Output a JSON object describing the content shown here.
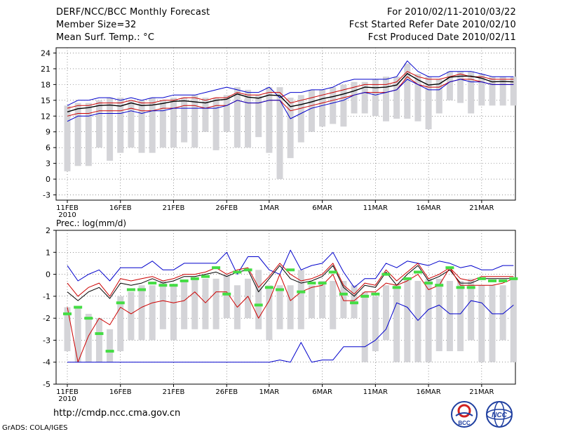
{
  "header": {
    "title": "DERF/NCC/BCC Monthly Forecast",
    "member_size": "Member Size=32",
    "variable": "Mean Surf. Temp.: °C",
    "period": "For 2010/02/11-2010/03/22",
    "fcst_started": "Fcst Started Refer Date 2010/02/10",
    "fcst_produced": "Fcst Produced Date 2010/02/11"
  },
  "footer": {
    "url": "http://cmdp.ncc.cma.gov.cn",
    "grads": "GrADS: COLA/IGES",
    "logo1_text": "BCC",
    "logo2_text": "NCC"
  },
  "colors": {
    "box": "#d4d4d8",
    "ensemble_max": "#0000cc",
    "ensemble_min": "#0000cc",
    "spread": "#cc0000",
    "mean": "#000000",
    "observed": "#44dd44",
    "grid": "#555555"
  },
  "chart_data": [
    {
      "type": "box-line",
      "title": "Mean Surf. Temp.: °C",
      "ylabel": "°C",
      "ylim": [
        -4,
        25
      ],
      "yticks": [
        -3,
        0,
        3,
        6,
        9,
        12,
        15,
        18,
        21,
        24
      ],
      "grid": true,
      "xlabel_ticks": [
        "11FEB",
        "16FEB",
        "21FEB",
        "26FEB",
        "1MAR",
        "6MAR",
        "11MAR",
        "16MAR",
        "21MAR"
      ],
      "x_year_label": "2010",
      "x_tick_day_index": [
        0,
        5,
        10,
        15,
        19,
        24,
        29,
        34,
        39
      ],
      "box_top": [
        14.0,
        14.5,
        14.5,
        15.0,
        15.5,
        15.5,
        15.0,
        15.0,
        15.5,
        15.0,
        15.5,
        15.5,
        16.0,
        15.5,
        15.5,
        16.0,
        17.5,
        17.0,
        16.0,
        17.5,
        17.5,
        15.5,
        16.0,
        17.0,
        17.0,
        17.5,
        18.0,
        18.5,
        18.5,
        19.0,
        19.5,
        19.5,
        22.0,
        20.0,
        19.5,
        19.0,
        20.5,
        20.5,
        20.5,
        20.0,
        19.5,
        19.5,
        19.5
      ],
      "box_bottom": [
        1.5,
        2.5,
        2.5,
        6.0,
        3.5,
        5.0,
        6.0,
        5.0,
        5.0,
        6.0,
        6.0,
        7.0,
        6.0,
        9.0,
        5.5,
        9.0,
        6.0,
        6.0,
        8.0,
        5.0,
        0.0,
        4.0,
        7.0,
        9.0,
        10.0,
        10.5,
        10.0,
        12.5,
        12.5,
        12.0,
        11.0,
        11.5,
        11.5,
        11.0,
        9.5,
        12.5,
        15.0,
        14.5,
        12.5,
        14.0,
        14.0,
        14.0,
        14.0
      ],
      "series": [
        {
          "name": "ensemble max",
          "values": [
            14.0,
            15.0,
            15.0,
            15.5,
            15.5,
            15.0,
            15.5,
            15.0,
            15.5,
            15.5,
            16.0,
            16.0,
            16.0,
            16.5,
            17.0,
            17.5,
            17.0,
            16.5,
            16.5,
            17.5,
            15.5,
            16.5,
            16.5,
            17.0,
            17.0,
            17.5,
            18.5,
            19.0,
            19.0,
            19.0,
            19.0,
            19.5,
            22.5,
            20.5,
            19.5,
            19.5,
            20.5,
            20.5,
            20.5,
            20.0,
            19.5,
            19.5,
            19.5
          ]
        },
        {
          "name": "spread upper",
          "values": [
            13.5,
            14.0,
            14.0,
            14.5,
            14.5,
            14.5,
            15.0,
            14.5,
            14.5,
            15.0,
            15.0,
            15.5,
            15.5,
            15.0,
            15.5,
            15.5,
            16.5,
            16.0,
            16.0,
            16.5,
            16.5,
            14.5,
            15.0,
            15.5,
            16.0,
            16.5,
            17.0,
            17.5,
            18.0,
            18.0,
            18.0,
            18.5,
            20.5,
            19.5,
            19.0,
            19.0,
            19.5,
            20.0,
            19.5,
            19.5,
            19.0,
            19.0,
            19.0
          ]
        },
        {
          "name": "ensemble mean",
          "values": [
            12.8,
            13.4,
            13.6,
            14.0,
            14.1,
            13.9,
            14.5,
            14.0,
            14.1,
            14.4,
            14.8,
            14.9,
            14.7,
            14.5,
            15.0,
            15.2,
            16.2,
            15.6,
            15.4,
            16.0,
            15.9,
            13.8,
            14.2,
            14.7,
            15.3,
            15.7,
            16.2,
            16.8,
            17.5,
            17.4,
            17.5,
            17.9,
            20.1,
            18.9,
            17.9,
            18.1,
            19.4,
            19.6,
            19.6,
            19.2,
            18.5,
            18.6,
            18.5
          ]
        },
        {
          "name": "spread lower",
          "values": [
            12.0,
            12.5,
            12.5,
            13.0,
            13.0,
            13.0,
            13.5,
            13.0,
            13.0,
            13.5,
            13.5,
            14.0,
            14.0,
            13.5,
            14.0,
            14.0,
            15.0,
            14.5,
            14.5,
            15.0,
            15.0,
            13.0,
            13.5,
            14.0,
            14.5,
            15.0,
            15.5,
            16.0,
            16.5,
            16.5,
            16.5,
            17.0,
            19.5,
            18.0,
            17.5,
            17.5,
            18.5,
            19.0,
            19.0,
            18.5,
            18.0,
            18.0,
            18.0
          ]
        },
        {
          "name": "ensemble min",
          "values": [
            11.0,
            12.0,
            12.0,
            12.5,
            12.5,
            12.5,
            13.0,
            12.5,
            13.0,
            13.0,
            13.5,
            13.5,
            13.5,
            13.5,
            13.5,
            14.0,
            15.0,
            14.5,
            14.5,
            15.0,
            15.0,
            11.5,
            12.5,
            13.5,
            14.0,
            14.5,
            15.0,
            16.0,
            16.5,
            16.0,
            16.5,
            17.0,
            19.0,
            18.0,
            17.0,
            17.0,
            18.5,
            19.0,
            18.5,
            18.5,
            18.0,
            18.0,
            18.0
          ]
        }
      ]
    },
    {
      "type": "box-line",
      "title": "Prec.: log(mm/d)",
      "ylabel": "log(mm/d)",
      "ylim": [
        -5,
        2
      ],
      "yticks": [
        -5,
        -4,
        -3,
        -2,
        -1,
        0,
        1,
        2
      ],
      "grid": true,
      "xlabel_ticks": [
        "11FEB",
        "16FEB",
        "21FEB",
        "26FEB",
        "1MAR",
        "6MAR",
        "11MAR",
        "16MAR",
        "21MAR"
      ],
      "x_year_label": "2010",
      "x_tick_day_index": [
        0,
        5,
        10,
        15,
        19,
        24,
        29,
        34,
        39
      ],
      "box_top": [
        -1.5,
        -1.5,
        -1.8,
        -2.0,
        -2.5,
        -1.0,
        -0.8,
        -0.5,
        -0.5,
        -0.3,
        -0.5,
        -0.3,
        -0.2,
        -0.2,
        -0.2,
        0.0,
        -0.5,
        -0.2,
        0.2,
        -0.5,
        -0.5,
        -0.5,
        0.2,
        -0.5,
        -0.3,
        -0.3,
        -0.3,
        -0.5,
        -0.8,
        -1.0,
        -0.5,
        -0.5,
        -0.2,
        -0.3,
        -0.2,
        -0.2,
        -0.3,
        -0.3,
        -0.2,
        -0.5,
        -0.5,
        -0.5,
        -0.2
      ],
      "box_bottom": [
        -3.5,
        -4.0,
        -4.0,
        -4.0,
        -4.0,
        -3.5,
        -3.0,
        -3.0,
        -3.0,
        -2.5,
        -3.0,
        -2.5,
        -2.5,
        -2.5,
        -2.5,
        -2.0,
        -2.5,
        -2.0,
        -2.5,
        -3.0,
        -2.5,
        -2.5,
        -2.5,
        -2.0,
        -2.0,
        -2.5,
        -2.0,
        -2.0,
        -4.0,
        -3.5,
        -3.0,
        -4.0,
        -4.0,
        -4.0,
        -4.0,
        -3.5,
        -3.5,
        -3.5,
        -3.0,
        -4.0,
        -4.0,
        -3.0,
        -4.0
      ],
      "observed": [
        -1.8,
        -1.5,
        -2.0,
        -2.7,
        -3.5,
        -1.3,
        -0.7,
        -0.7,
        -0.4,
        -0.5,
        -0.5,
        -0.3,
        -0.2,
        -0.1,
        0.3,
        -0.9,
        0.1,
        0.2,
        -1.4,
        -0.6,
        -0.7,
        0.2,
        -0.8,
        -0.4,
        -0.4,
        0.1,
        -0.9,
        -1.3,
        -1.0,
        -0.9,
        0.0,
        -0.6,
        -0.2,
        0.1,
        -0.4,
        -0.5,
        0.3,
        -0.6,
        -0.6,
        -0.2,
        -0.3,
        -0.3,
        -0.2
      ],
      "series": [
        {
          "name": "ensemble max",
          "values": [
            0.4,
            -0.3,
            0.0,
            0.2,
            -0.3,
            0.3,
            0.3,
            0.3,
            0.6,
            0.2,
            0.2,
            0.5,
            0.5,
            0.5,
            0.5,
            1.0,
            0.0,
            0.8,
            0.8,
            0.2,
            0.0,
            1.1,
            0.2,
            0.4,
            0.5,
            1.0,
            0.1,
            -0.6,
            -0.2,
            -0.2,
            0.5,
            0.3,
            0.6,
            0.5,
            0.4,
            0.6,
            0.5,
            0.3,
            0.4,
            0.2,
            0.2,
            0.4,
            0.4
          ]
        },
        {
          "name": "ensemble mean upper",
          "values": [
            -0.4,
            -1.0,
            -0.6,
            -0.4,
            -1.0,
            -0.2,
            -0.3,
            -0.2,
            -0.1,
            -0.3,
            -0.2,
            0.0,
            0.0,
            0.1,
            0.3,
            0.0,
            0.2,
            0.3,
            -0.6,
            -0.1,
            0.5,
            0.0,
            -0.3,
            -0.2,
            0.0,
            0.5,
            -0.5,
            -0.9,
            -0.4,
            -0.5,
            0.2,
            -0.3,
            0.1,
            0.5,
            -0.2,
            0.0,
            0.3,
            -0.2,
            -0.3,
            -0.1,
            -0.1,
            -0.1,
            -0.1
          ]
        },
        {
          "name": "ensemble mean",
          "values": [
            -0.8,
            -1.2,
            -0.8,
            -0.6,
            -1.1,
            -0.4,
            -0.5,
            -0.4,
            -0.2,
            -0.4,
            -0.3,
            -0.1,
            -0.1,
            0.0,
            0.1,
            -0.1,
            0.1,
            0.2,
            -0.8,
            -0.2,
            0.4,
            -0.2,
            -0.4,
            -0.3,
            -0.1,
            0.4,
            -0.6,
            -1.0,
            -0.5,
            -0.6,
            0.1,
            -0.5,
            0.0,
            0.4,
            -0.3,
            -0.1,
            0.2,
            -0.4,
            -0.4,
            -0.2,
            -0.2,
            -0.2,
            -0.2
          ]
        },
        {
          "name": "ensemble lower",
          "values": [
            -1.5,
            -4.0,
            -2.8,
            -2.0,
            -2.3,
            -1.5,
            -1.8,
            -1.5,
            -1.3,
            -1.2,
            -1.3,
            -1.2,
            -0.8,
            -1.3,
            -0.8,
            -0.8,
            -1.5,
            -1.0,
            -2.0,
            -1.2,
            0.0,
            -1.2,
            -0.8,
            -0.6,
            -0.5,
            0.0,
            -1.2,
            -1.2,
            -0.8,
            -0.8,
            -0.4,
            -0.5,
            -0.3,
            0.0,
            -0.7,
            -0.5,
            0.3,
            -0.5,
            -0.5,
            -0.5,
            -0.5,
            -0.4,
            -0.2
          ]
        },
        {
          "name": "ensemble min",
          "values": [
            -4.0,
            -4.0,
            -4.0,
            -4.0,
            -4.0,
            -4.0,
            -4.0,
            -4.0,
            -4.0,
            -4.0,
            -4.0,
            -4.0,
            -4.0,
            -4.0,
            -4.0,
            -4.0,
            -4.0,
            -4.0,
            -4.0,
            -4.0,
            -3.9,
            -4.0,
            -3.1,
            -4.0,
            -3.9,
            -3.9,
            -3.3,
            -3.3,
            -3.3,
            -3.0,
            -2.5,
            -1.3,
            -1.5,
            -2.1,
            -1.6,
            -1.4,
            -1.8,
            -1.8,
            -1.2,
            -1.3,
            -1.8,
            -1.8,
            -1.4
          ]
        }
      ]
    }
  ]
}
